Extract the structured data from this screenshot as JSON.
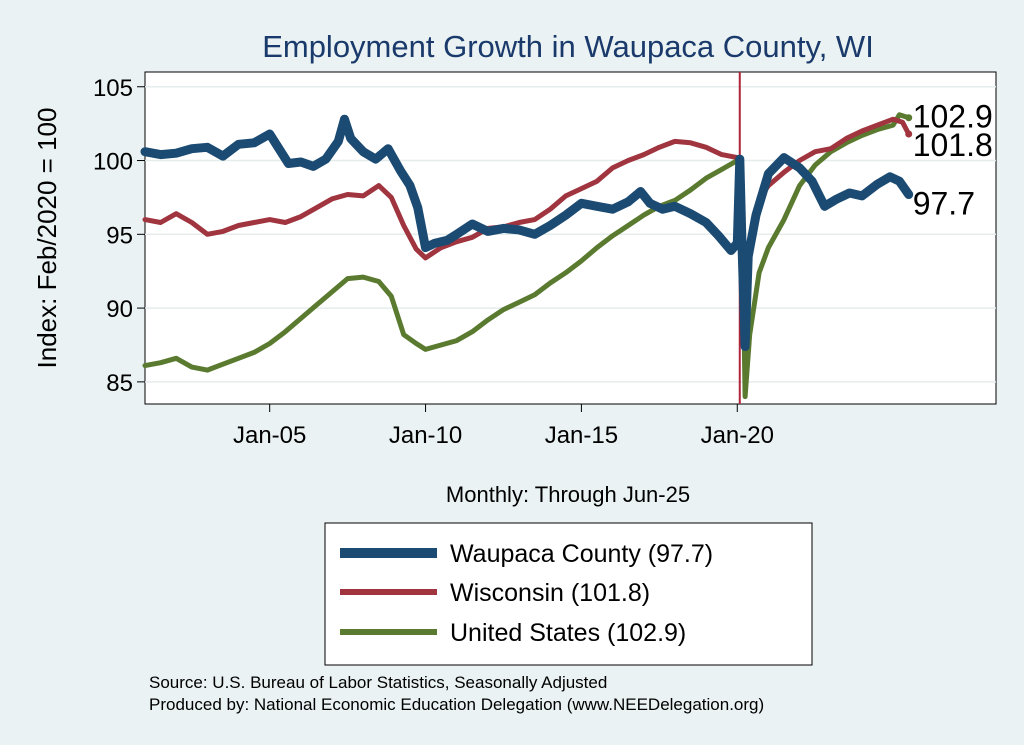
{
  "chart_data": {
    "type": "line",
    "title": "Employment Growth in Waupaca  County, WI",
    "ylabel": "Index: Feb/2020 = 100",
    "xlabel": "Monthly: Through Jun-25",
    "ylim": [
      83.5,
      106
    ],
    "xlim": [
      2001.0,
      2028.3
    ],
    "y_ticks": [
      85,
      90,
      95,
      100,
      105
    ],
    "y_tick_labels": [
      "85",
      "90",
      "95",
      "100",
      "105"
    ],
    "x_ticks": [
      2005,
      2010,
      2015,
      2020
    ],
    "x_tick_labels": [
      "Jan-05",
      "Jan-10",
      "Jan-15",
      "Jan-20"
    ],
    "reference_line_x": 2020.08,
    "grid": true,
    "series": [
      {
        "name": "Waupaca  County",
        "legend": "Waupaca  County (97.7)",
        "end_label": "97.7",
        "color": "#1b4a72",
        "stroke": 9,
        "points": [
          [
            2001.0,
            100.6
          ],
          [
            2001.5,
            100.4
          ],
          [
            2002.0,
            100.5
          ],
          [
            2002.5,
            100.8
          ],
          [
            2003.0,
            100.9
          ],
          [
            2003.5,
            100.3
          ],
          [
            2004.0,
            101.1
          ],
          [
            2004.5,
            101.2
          ],
          [
            2005.0,
            101.8
          ],
          [
            2005.3,
            100.8
          ],
          [
            2005.6,
            99.8
          ],
          [
            2006.0,
            99.9
          ],
          [
            2006.4,
            99.6
          ],
          [
            2006.8,
            100.1
          ],
          [
            2007.2,
            101.3
          ],
          [
            2007.4,
            102.8
          ],
          [
            2007.6,
            101.5
          ],
          [
            2008.0,
            100.6
          ],
          [
            2008.4,
            100.1
          ],
          [
            2008.8,
            100.8
          ],
          [
            2009.2,
            99.3
          ],
          [
            2009.5,
            98.3
          ],
          [
            2009.75,
            96.8
          ],
          [
            2010.0,
            94.1
          ],
          [
            2010.3,
            94.4
          ],
          [
            2010.7,
            94.6
          ],
          [
            2011.0,
            95.0
          ],
          [
            2011.5,
            95.7
          ],
          [
            2012.0,
            95.2
          ],
          [
            2012.5,
            95.4
          ],
          [
            2013.0,
            95.3
          ],
          [
            2013.5,
            95.0
          ],
          [
            2014.0,
            95.6
          ],
          [
            2014.5,
            96.3
          ],
          [
            2015.0,
            97.1
          ],
          [
            2015.5,
            96.9
          ],
          [
            2016.0,
            96.7
          ],
          [
            2016.5,
            97.2
          ],
          [
            2016.9,
            97.9
          ],
          [
            2017.2,
            97.1
          ],
          [
            2017.6,
            96.7
          ],
          [
            2018.0,
            96.9
          ],
          [
            2018.5,
            96.4
          ],
          [
            2019.0,
            95.8
          ],
          [
            2019.4,
            94.9
          ],
          [
            2019.8,
            93.9
          ],
          [
            2020.0,
            94.4
          ],
          [
            2020.08,
            100.1
          ],
          [
            2020.15,
            94.5
          ],
          [
            2020.25,
            87.4
          ],
          [
            2020.35,
            93.5
          ],
          [
            2020.6,
            96.3
          ],
          [
            2021.0,
            99.1
          ],
          [
            2021.5,
            100.2
          ],
          [
            2022.0,
            99.5
          ],
          [
            2022.4,
            98.6
          ],
          [
            2022.8,
            96.9
          ],
          [
            2023.2,
            97.4
          ],
          [
            2023.6,
            97.8
          ],
          [
            2024.0,
            97.6
          ],
          [
            2024.5,
            98.4
          ],
          [
            2024.9,
            98.9
          ],
          [
            2025.2,
            98.6
          ],
          [
            2025.5,
            97.7
          ]
        ]
      },
      {
        "name": "Wisconsin",
        "legend": "Wisconsin (101.8)",
        "end_label": "101.8",
        "color": "#a0343f",
        "stroke": 5,
        "points": [
          [
            2001.0,
            96.0
          ],
          [
            2001.5,
            95.8
          ],
          [
            2002.0,
            96.4
          ],
          [
            2002.5,
            95.8
          ],
          [
            2003.0,
            95.0
          ],
          [
            2003.5,
            95.2
          ],
          [
            2004.0,
            95.6
          ],
          [
            2004.5,
            95.8
          ],
          [
            2005.0,
            96.0
          ],
          [
            2005.5,
            95.8
          ],
          [
            2006.0,
            96.2
          ],
          [
            2006.5,
            96.8
          ],
          [
            2007.0,
            97.4
          ],
          [
            2007.5,
            97.7
          ],
          [
            2008.0,
            97.6
          ],
          [
            2008.5,
            98.3
          ],
          [
            2008.9,
            97.5
          ],
          [
            2009.3,
            95.6
          ],
          [
            2009.7,
            94.0
          ],
          [
            2010.0,
            93.4
          ],
          [
            2010.5,
            94.1
          ],
          [
            2011.0,
            94.5
          ],
          [
            2011.5,
            94.8
          ],
          [
            2012.0,
            95.4
          ],
          [
            2012.5,
            95.5
          ],
          [
            2013.0,
            95.8
          ],
          [
            2013.5,
            96.0
          ],
          [
            2014.0,
            96.7
          ],
          [
            2014.5,
            97.6
          ],
          [
            2015.0,
            98.1
          ],
          [
            2015.5,
            98.6
          ],
          [
            2016.0,
            99.5
          ],
          [
            2016.5,
            100.0
          ],
          [
            2017.0,
            100.4
          ],
          [
            2017.5,
            100.9
          ],
          [
            2018.0,
            101.3
          ],
          [
            2018.5,
            101.2
          ],
          [
            2019.0,
            100.9
          ],
          [
            2019.5,
            100.4
          ],
          [
            2020.0,
            100.2
          ],
          [
            2020.15,
            99.0
          ],
          [
            2020.25,
            89.8
          ],
          [
            2020.4,
            94.0
          ],
          [
            2020.7,
            97.4
          ],
          [
            2021.0,
            98.3
          ],
          [
            2021.5,
            99.2
          ],
          [
            2022.0,
            100.0
          ],
          [
            2022.5,
            100.6
          ],
          [
            2023.0,
            100.8
          ],
          [
            2023.5,
            101.5
          ],
          [
            2024.0,
            102.0
          ],
          [
            2024.5,
            102.4
          ],
          [
            2025.0,
            102.8
          ],
          [
            2025.3,
            102.6
          ],
          [
            2025.5,
            101.8
          ]
        ]
      },
      {
        "name": "United States",
        "legend": "United States (102.9)",
        "end_label": "102.9",
        "color": "#5a7a30",
        "stroke": 5,
        "points": [
          [
            2001.0,
            86.1
          ],
          [
            2001.5,
            86.3
          ],
          [
            2002.0,
            86.6
          ],
          [
            2002.5,
            86.0
          ],
          [
            2003.0,
            85.8
          ],
          [
            2003.5,
            86.2
          ],
          [
            2004.0,
            86.6
          ],
          [
            2004.5,
            87.0
          ],
          [
            2005.0,
            87.6
          ],
          [
            2005.5,
            88.4
          ],
          [
            2006.0,
            89.3
          ],
          [
            2006.5,
            90.2
          ],
          [
            2007.0,
            91.1
          ],
          [
            2007.5,
            92.0
          ],
          [
            2008.0,
            92.1
          ],
          [
            2008.5,
            91.8
          ],
          [
            2008.9,
            90.8
          ],
          [
            2009.3,
            88.2
          ],
          [
            2009.7,
            87.6
          ],
          [
            2010.0,
            87.2
          ],
          [
            2010.5,
            87.5
          ],
          [
            2011.0,
            87.8
          ],
          [
            2011.5,
            88.4
          ],
          [
            2012.0,
            89.2
          ],
          [
            2012.5,
            89.9
          ],
          [
            2013.0,
            90.4
          ],
          [
            2013.5,
            90.9
          ],
          [
            2014.0,
            91.7
          ],
          [
            2014.5,
            92.4
          ],
          [
            2015.0,
            93.2
          ],
          [
            2015.5,
            94.1
          ],
          [
            2016.0,
            94.9
          ],
          [
            2016.5,
            95.6
          ],
          [
            2017.0,
            96.3
          ],
          [
            2017.5,
            96.9
          ],
          [
            2018.0,
            97.3
          ],
          [
            2018.5,
            98.0
          ],
          [
            2019.0,
            98.8
          ],
          [
            2019.5,
            99.4
          ],
          [
            2020.0,
            100.0
          ],
          [
            2020.15,
            98.0
          ],
          [
            2020.25,
            84.0
          ],
          [
            2020.4,
            88.2
          ],
          [
            2020.7,
            92.4
          ],
          [
            2021.0,
            94.1
          ],
          [
            2021.5,
            96.0
          ],
          [
            2022.0,
            98.3
          ],
          [
            2022.5,
            99.7
          ],
          [
            2023.0,
            100.6
          ],
          [
            2023.5,
            101.2
          ],
          [
            2024.0,
            101.7
          ],
          [
            2024.5,
            102.1
          ],
          [
            2025.0,
            102.4
          ],
          [
            2025.2,
            103.1
          ],
          [
            2025.5,
            102.9
          ]
        ]
      }
    ]
  },
  "source_line1": "Source: U.S. Bureau of Labor Statistics, Seasonally Adjusted",
  "source_line2": "Produced by: National Economic Education Delegation (www.NEEDelegation.org)"
}
